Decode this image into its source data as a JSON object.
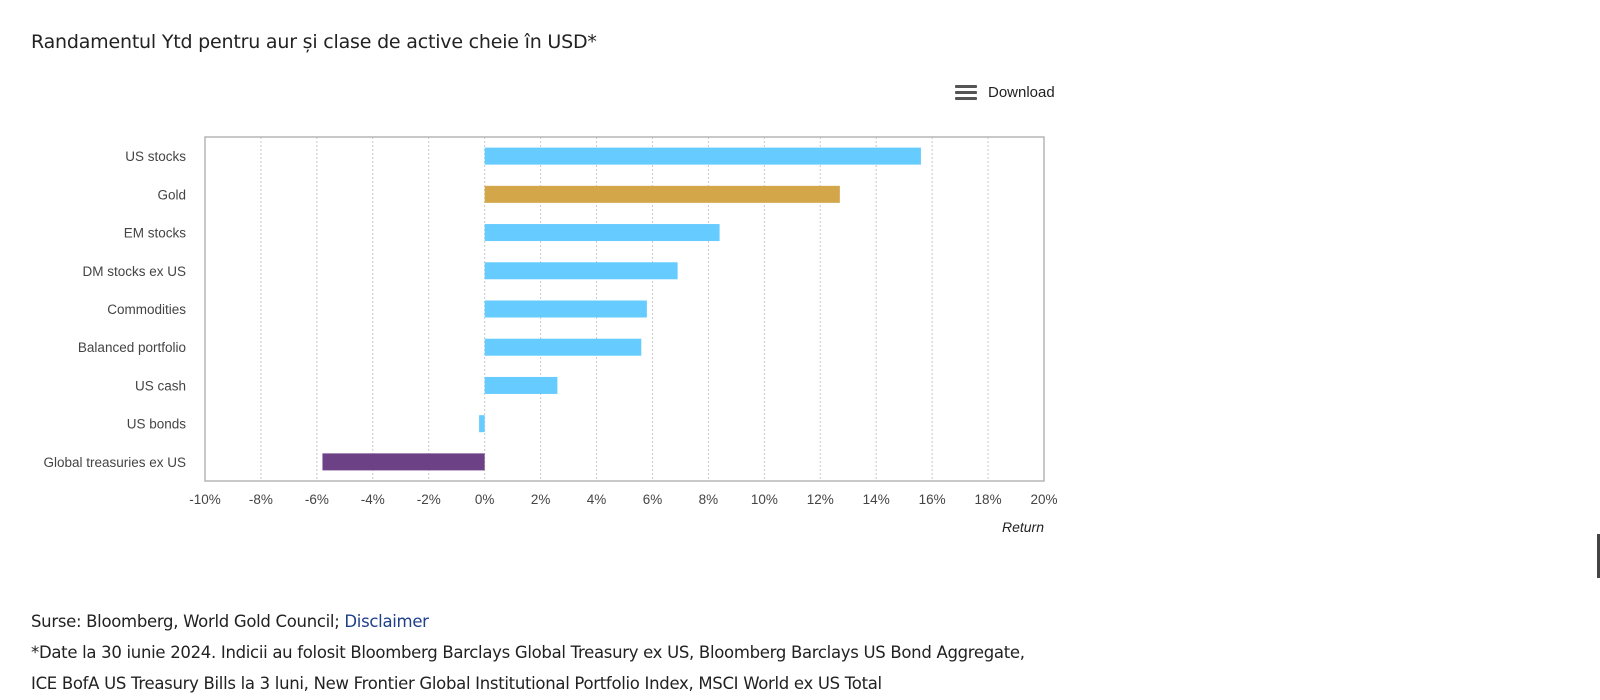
{
  "page": {
    "title": "Randamentul Ytd pentru aur și clase de active cheie în USD*",
    "download_label": "Download",
    "sources_label": "Surse: Bloomberg, World Gold Council; ",
    "disclaimer_link": "Disclaimer",
    "footnote": "*Date la 30 iunie 2024. Indicii au folosit Bloomberg Barclays Global Treasury ex US, Bloomberg Barclays US Bond Aggregate, ICE BofA US Treasury Bills la 3 luni, New Frontier Global Institutional Portfolio Index, MSCI World ex US Total"
  },
  "chart_data": {
    "type": "bar",
    "orientation": "horizontal",
    "categories": [
      "US stocks",
      "Gold",
      "EM stocks",
      "DM stocks ex US",
      "Commodities",
      "Balanced portfolio",
      "US cash",
      "US bonds",
      "Global treasuries ex US"
    ],
    "values": [
      15.6,
      12.7,
      8.4,
      6.9,
      5.8,
      5.6,
      2.6,
      -0.2,
      -5.8
    ],
    "bar_colors": [
      "#66ccff",
      "#d4a64a",
      "#66ccff",
      "#66ccff",
      "#66ccff",
      "#66ccff",
      "#66ccff",
      "#66ccff",
      "#6d4186"
    ],
    "xlim": [
      -10,
      20
    ],
    "x_ticks": [
      -10,
      -8,
      -6,
      -4,
      -2,
      0,
      2,
      4,
      6,
      8,
      10,
      12,
      14,
      16,
      18,
      20
    ],
    "x_tick_labels": [
      "-10%",
      "-8%",
      "-6%",
      "-4%",
      "-2%",
      "0%",
      "2%",
      "4%",
      "6%",
      "8%",
      "10%",
      "12%",
      "14%",
      "16%",
      "18%",
      "20%"
    ],
    "xlabel": "Return",
    "ylabel": "",
    "grid": "vertical dotted"
  }
}
